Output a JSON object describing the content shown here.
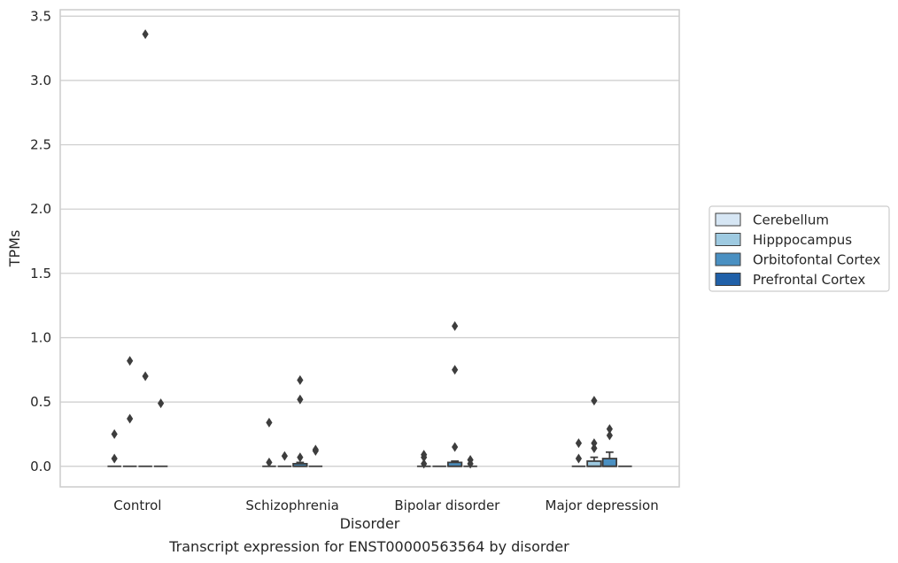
{
  "chart_data": {
    "type": "box",
    "title": "",
    "caption": "Transcript expression for ENST00000563564 by disorder",
    "xlabel": "Disorder",
    "ylabel": "TPMs",
    "ylim": [
      -0.16,
      3.55
    ],
    "yticks": [
      0.0,
      0.5,
      1.0,
      1.5,
      2.0,
      2.5,
      3.0,
      3.5
    ],
    "ytick_labels": [
      "0.0",
      "0.5",
      "1.0",
      "1.5",
      "2.0",
      "2.5",
      "3.0",
      "3.5"
    ],
    "grid": "horizontal",
    "legend_position": "right",
    "categories": [
      "Control",
      "Schizophrenia",
      "Bipolar disorder",
      "Major depression"
    ],
    "series": [
      {
        "name": "Cerebellum",
        "color": "#d6e6f4",
        "boxes": [
          {
            "q1": 0,
            "median": 0,
            "q3": 0,
            "whisker_low": 0,
            "whisker_high": 0,
            "outliers": [
              0.06,
              0.25
            ]
          },
          {
            "q1": 0,
            "median": 0,
            "q3": 0,
            "whisker_low": 0,
            "whisker_high": 0,
            "outliers": [
              0.03,
              0.34
            ]
          },
          {
            "q1": 0,
            "median": 0,
            "q3": 0,
            "whisker_low": 0,
            "whisker_high": 0,
            "outliers": [
              0.02,
              0.07,
              0.09
            ]
          },
          {
            "q1": 0,
            "median": 0,
            "q3": 0,
            "whisker_low": 0,
            "whisker_high": 0,
            "outliers": [
              0.06,
              0.18
            ]
          }
        ]
      },
      {
        "name": "Hipppocampus",
        "color": "#9ecae1",
        "boxes": [
          {
            "q1": 0,
            "median": 0,
            "q3": 0,
            "whisker_low": 0,
            "whisker_high": 0,
            "outliers": [
              0.37,
              0.82
            ]
          },
          {
            "q1": 0,
            "median": 0,
            "q3": 0,
            "whisker_low": 0,
            "whisker_high": 0,
            "outliers": [
              0.08
            ]
          },
          {
            "q1": 0,
            "median": 0,
            "q3": 0,
            "whisker_low": 0,
            "whisker_high": 0,
            "outliers": []
          },
          {
            "q1": 0,
            "median": 0,
            "q3": 0.04,
            "whisker_low": 0,
            "whisker_high": 0.07,
            "outliers": [
              0.14,
              0.18,
              0.51
            ]
          }
        ]
      },
      {
        "name": "Orbitofontal Cortex",
        "color": "#4a90c2",
        "boxes": [
          {
            "q1": 0,
            "median": 0,
            "q3": 0,
            "whisker_low": 0,
            "whisker_high": 0,
            "outliers": [
              0.7,
              3.36
            ]
          },
          {
            "q1": 0,
            "median": 0,
            "q3": 0.02,
            "whisker_low": 0,
            "whisker_high": 0.03,
            "outliers": [
              0.07,
              0.52,
              0.67
            ]
          },
          {
            "q1": 0,
            "median": 0,
            "q3": 0.03,
            "whisker_low": 0,
            "whisker_high": 0.04,
            "outliers": [
              0.15,
              0.75,
              1.09
            ]
          },
          {
            "q1": 0,
            "median": 0,
            "q3": 0.06,
            "whisker_low": 0,
            "whisker_high": 0.11,
            "outliers": [
              0.24,
              0.29
            ]
          }
        ]
      },
      {
        "name": "Prefrontal Cortex",
        "color": "#2060a8",
        "boxes": [
          {
            "q1": 0,
            "median": 0,
            "q3": 0,
            "whisker_low": 0,
            "whisker_high": 0,
            "outliers": [
              0.49
            ]
          },
          {
            "q1": 0,
            "median": 0,
            "q3": 0,
            "whisker_low": 0,
            "whisker_high": 0,
            "outliers": [
              0.12,
              0.13
            ]
          },
          {
            "q1": 0,
            "median": 0,
            "q3": 0,
            "whisker_low": 0,
            "whisker_high": 0,
            "outliers": [
              0.02,
              0.05
            ]
          },
          {
            "q1": 0,
            "median": 0,
            "q3": 0,
            "whisker_low": 0,
            "whisker_high": 0,
            "outliers": []
          }
        ]
      }
    ]
  },
  "style": {
    "grid_color": "#cccccc",
    "frame_color": "#cccccc",
    "box_edge_color": "#3d3d3d",
    "outlier_color": "#3d3d3d"
  }
}
